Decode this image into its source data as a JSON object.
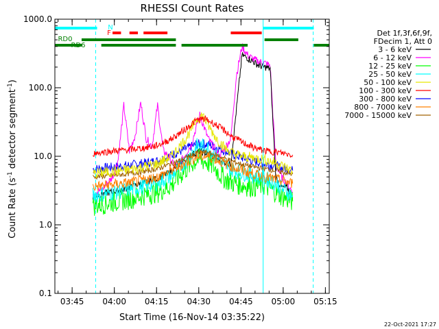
{
  "chart_data": {
    "type": "line",
    "title": "RHESSI Count Rates",
    "xlabel": "Start Time (16-Nov-14 03:35:22)",
    "ylabel_parts": [
      "Count Rate (s",
      "-1",
      " detector segment",
      "-1",
      ")"
    ],
    "y_scale": "log",
    "ylim": [
      0.1,
      1000
    ],
    "xlim_minutes": [
      3.5,
      101.0
    ],
    "y_ticks": [
      {
        "label": "1000.0",
        "value": 1000
      },
      {
        "label": "100.0",
        "value": 100
      },
      {
        "label": "10.0",
        "value": 10
      },
      {
        "label": "1.0",
        "value": 1
      },
      {
        "label": "0.1",
        "value": 0.1
      }
    ],
    "x_ticks": [
      {
        "label": "03:45",
        "min": 9.63
      },
      {
        "label": "04:00",
        "min": 24.63
      },
      {
        "label": "04:15",
        "min": 39.63
      },
      {
        "label": "04:30",
        "min": 54.63
      },
      {
        "label": "04:45",
        "min": 69.63
      },
      {
        "label": "05:00",
        "min": 84.63
      },
      {
        "label": "05:15",
        "min": 99.63
      }
    ],
    "legend": {
      "placement": "right",
      "header": [
        "Det 1f,3f,6f,9f,",
        "FDecim 1, Att 0"
      ],
      "entries": [
        {
          "label": "3 - 6 keV",
          "color": "#000000"
        },
        {
          "label": "6 - 12 keV",
          "color": "#ff00ff"
        },
        {
          "label": "12 - 25 keV",
          "color": "#00ff00"
        },
        {
          "label": "25 - 50 keV",
          "color": "#00ffff"
        },
        {
          "label": "50 - 100 keV",
          "color": "#e6e600"
        },
        {
          "label": "100 - 300 keV",
          "color": "#ff0000"
        },
        {
          "label": "300 - 800 keV",
          "color": "#0000ff"
        },
        {
          "label": "800 - 7000 keV",
          "color": "#ff8000"
        },
        {
          "label": "7000 - 15000 keV",
          "color": "#a06000"
        }
      ]
    },
    "series": [
      {
        "name": "3 - 6 keV",
        "color": "#000000",
        "x": [
          17,
          20,
          25,
          30,
          33,
          36,
          40,
          44,
          48,
          52,
          55,
          58,
          62,
          66,
          70,
          72,
          74,
          76,
          78,
          80,
          82,
          84,
          86,
          88
        ],
        "y": [
          2.6,
          2.8,
          3.1,
          3.5,
          3.9,
          4.2,
          4.8,
          5.7,
          7.8,
          10.5,
          11.8,
          10.8,
          8.8,
          7.6,
          300,
          270,
          240,
          210,
          200,
          190,
          5,
          3.5,
          3.5,
          2.5
        ]
      },
      {
        "name": "6 - 12 keV",
        "color": "#ff00ff",
        "x": [
          17,
          20,
          24,
          26,
          28,
          30,
          32,
          34,
          36,
          38,
          40,
          42,
          44,
          46,
          48,
          52,
          55,
          58,
          62,
          66,
          68,
          70,
          72,
          74,
          76,
          78,
          80,
          82,
          84,
          86,
          88
        ],
        "y": [
          3.0,
          3.2,
          5,
          9,
          55,
          12,
          20,
          60,
          18,
          14,
          55,
          12,
          10,
          7,
          8,
          15,
          40,
          18,
          10,
          18,
          150,
          400,
          300,
          260,
          240,
          230,
          210,
          8,
          5,
          4,
          3
        ]
      },
      {
        "name": "12 - 25 keV",
        "color": "#00ff00",
        "x": [
          17,
          20,
          25,
          30,
          35,
          40,
          45,
          50,
          54,
          57,
          60,
          63,
          66,
          70,
          74,
          78,
          82,
          85,
          88
        ],
        "y": [
          1.9,
          2.0,
          2.2,
          2.4,
          2.7,
          3.0,
          3.8,
          6.5,
          9,
          8.5,
          7,
          5,
          4.2,
          3.8,
          3.6,
          3.8,
          3.0,
          2.5,
          2.2
        ]
      },
      {
        "name": "25 - 50 keV",
        "color": "#00ffff",
        "x": [
          17,
          20,
          25,
          30,
          35,
          40,
          45,
          50,
          54,
          57,
          60,
          63,
          66,
          70,
          74,
          78,
          82,
          85,
          88
        ],
        "y": [
          2.7,
          2.8,
          3.0,
          3.3,
          3.6,
          4.1,
          5.2,
          8.5,
          14,
          14,
          11,
          8,
          6.5,
          5.8,
          5.2,
          4.8,
          4.0,
          3.2,
          2.7
        ]
      },
      {
        "name": "50 - 100 keV",
        "color": "#e6e600",
        "x": [
          17,
          20,
          25,
          30,
          35,
          40,
          45,
          50,
          54,
          56,
          58,
          61,
          64,
          67,
          70,
          74,
          78,
          82,
          85,
          88
        ],
        "y": [
          5.6,
          5.8,
          6.0,
          6.4,
          7.0,
          7.8,
          10,
          18,
          35,
          40,
          28,
          18,
          13,
          11,
          10,
          9.5,
          9,
          8,
          7,
          6
        ]
      },
      {
        "name": "100 - 300 keV",
        "color": "#ff0000",
        "x": [
          17,
          20,
          25,
          30,
          35,
          40,
          45,
          50,
          54,
          57,
          60,
          63,
          66,
          70,
          74,
          78,
          82,
          85,
          88
        ],
        "y": [
          11,
          11.4,
          12,
          12.5,
          13.2,
          14.4,
          18,
          25,
          34,
          35,
          30,
          25,
          20,
          16,
          13.5,
          12,
          11.5,
          11,
          10.5
        ]
      },
      {
        "name": "300 - 800 keV",
        "color": "#0000ff",
        "x": [
          17,
          20,
          25,
          30,
          35,
          40,
          45,
          50,
          54,
          57,
          60,
          63,
          66,
          70,
          74,
          78,
          82,
          85,
          88
        ],
        "y": [
          6.5,
          6.7,
          7.0,
          7.4,
          7.9,
          8.6,
          10.4,
          12.8,
          15,
          15.2,
          14,
          12.5,
          11,
          9.5,
          8.5,
          7.8,
          7.2,
          6.6,
          6.2
        ]
      },
      {
        "name": "800 - 7000 keV",
        "color": "#ff8000",
        "x": [
          17,
          20,
          25,
          30,
          35,
          40,
          45,
          50,
          54,
          57,
          60,
          63,
          66,
          70,
          74,
          78,
          82,
          85,
          88
        ],
        "y": [
          3.6,
          3.7,
          3.9,
          4.1,
          4.5,
          5.0,
          6.2,
          8.0,
          9.8,
          10,
          9.4,
          8.2,
          7.2,
          6.2,
          5.5,
          5.0,
          4.6,
          4.3,
          4.0
        ]
      },
      {
        "name": "7000 - 15000 keV",
        "color": "#a06000",
        "x": [
          17,
          20,
          25,
          30,
          35,
          40,
          45,
          50,
          54,
          57,
          60,
          63,
          66,
          70,
          74,
          78,
          82,
          85,
          88
        ],
        "y": [
          5.0,
          5.1,
          5.3,
          5.6,
          6.0,
          6.6,
          7.8,
          9.4,
          11.2,
          11.4,
          10.6,
          9.6,
          8.6,
          7.6,
          7.0,
          6.6,
          6.2,
          5.8,
          5.5
        ]
      }
    ],
    "flag_bars": [
      {
        "label": "N",
        "color": "#00ffff",
        "row": 1,
        "segments": [
          [
            3.5,
            18.5
          ],
          [
            77.5,
            95.5
          ]
        ]
      },
      {
        "label": "F",
        "color": "#ff0000",
        "row": 2,
        "segments": [
          [
            24,
            27
          ],
          [
            30,
            33
          ],
          [
            35,
            43.5
          ],
          [
            66,
            77
          ]
        ]
      },
      {
        "label": "RD0",
        "color": "#008000",
        "row": 3,
        "segments": [
          [
            13,
            46.5
          ],
          [
            78,
            90
          ]
        ]
      },
      {
        "label": "RD6",
        "color": "#008000",
        "row": 4,
        "segments": [
          [
            3.5,
            13
          ],
          [
            20,
            46.5
          ],
          [
            48.5,
            72
          ],
          [
            95.5,
            101
          ]
        ]
      }
    ],
    "vertical_lines": [
      {
        "min": 3.5,
        "color": "#00ffff",
        "style": "solid"
      },
      {
        "min": 18.0,
        "color": "#00ffff",
        "style": "dashed"
      },
      {
        "min": 77.5,
        "color": "#00ffff",
        "style": "solid"
      },
      {
        "min": 95.3,
        "color": "#00ffff",
        "style": "dashed"
      }
    ]
  },
  "footer": {
    "timestamp": "22-Oct-2021 17:27"
  }
}
